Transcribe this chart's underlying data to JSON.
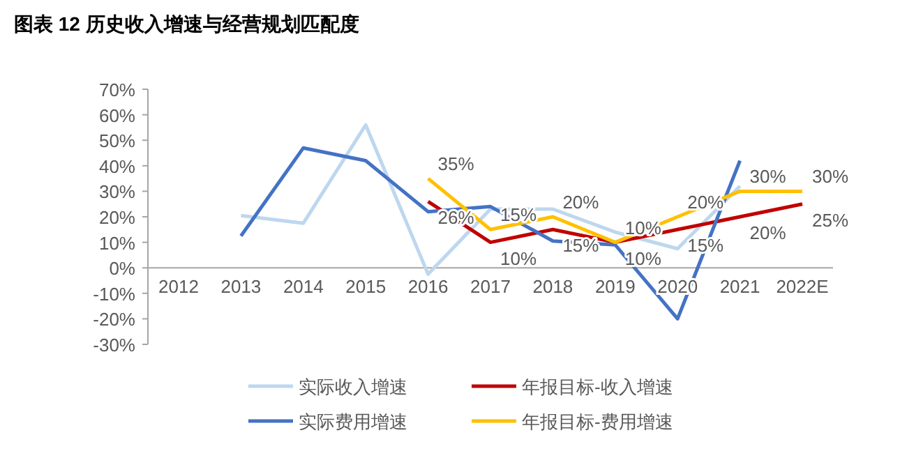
{
  "chart_data": {
    "type": "line",
    "title": "图表 12 历史收入增速与经营规划匹配度",
    "categories": [
      "2012",
      "2013",
      "2014",
      "2015",
      "2016",
      "2017",
      "2018",
      "2019",
      "2020",
      "2021",
      "2022E"
    ],
    "ylim": [
      -30,
      70
    ],
    "yticks": [
      {
        "value": -30,
        "label": "-30%"
      },
      {
        "value": -20,
        "label": "-20%"
      },
      {
        "value": -10,
        "label": "-10%"
      },
      {
        "value": 0,
        "label": "0%"
      },
      {
        "value": 10,
        "label": "10%"
      },
      {
        "value": 20,
        "label": "20%"
      },
      {
        "value": 30,
        "label": "30%"
      },
      {
        "value": 40,
        "label": "40%"
      },
      {
        "value": 50,
        "label": "50%"
      },
      {
        "value": 60,
        "label": "60%"
      },
      {
        "value": 70,
        "label": "70%"
      }
    ],
    "grid": false,
    "legend": "bottom",
    "series": [
      {
        "name": "实际收入增速",
        "color": "#bdd7ee",
        "values": [
          null,
          20.5,
          17.5,
          56,
          -2.5,
          23,
          23,
          14,
          7.5,
          32,
          null
        ]
      },
      {
        "name": "年报目标-收入增速",
        "color": "#c00000",
        "values": [
          null,
          null,
          null,
          null,
          26,
          10,
          15,
          10,
          15,
          20,
          25
        ],
        "value_labels": [
          null,
          null,
          null,
          null,
          "26%",
          "10%",
          "15%",
          "10%",
          "15%",
          "20%",
          "25%"
        ]
      },
      {
        "name": "实际费用增速",
        "color": "#4472c4",
        "values": [
          null,
          12.5,
          47,
          42,
          22,
          24,
          10.5,
          9,
          -20,
          42,
          null
        ]
      },
      {
        "name": "年报目标-费用增速",
        "color": "#ffc000",
        "values": [
          null,
          null,
          null,
          null,
          35,
          15,
          20,
          10,
          20,
          30,
          30
        ],
        "value_labels": [
          null,
          null,
          null,
          null,
          "35%",
          "15%",
          "20%",
          "10%",
          "20%",
          "30%",
          "30%"
        ]
      }
    ]
  }
}
